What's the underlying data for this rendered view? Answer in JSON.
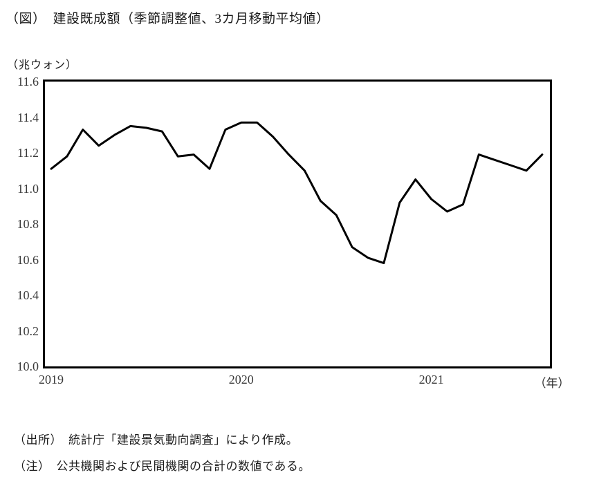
{
  "title": "（図）　建設既成額（季節調整値、3カ月移動平均値）",
  "unit_label": "（兆ウォン）",
  "x_axis_unit": "（年）",
  "source": "（出所）　統計庁「建設景気動向調査」により作成。",
  "note": "（注）　公共機関および民間機関の合計の数値である。",
  "chart_data": {
    "type": "line",
    "title": "建設既成額（季節調整値、3カ月移動平均値）",
    "ylabel": "兆ウォン",
    "ylim": [
      10.0,
      11.6
    ],
    "ytick_interval": 0.2,
    "yticks": [
      "11.6",
      "11.4",
      "11.2",
      "11.0",
      "10.8",
      "10.6",
      "10.4",
      "10.2",
      "10.0"
    ],
    "xticks": [
      "2019",
      "2020",
      "2021"
    ],
    "grid": false,
    "legend": "none",
    "line_color": "#000000",
    "x": [
      "2019-01",
      "2019-02",
      "2019-03",
      "2019-04",
      "2019-05",
      "2019-06",
      "2019-07",
      "2019-08",
      "2019-09",
      "2019-10",
      "2019-11",
      "2019-12",
      "2020-01",
      "2020-02",
      "2020-03",
      "2020-04",
      "2020-05",
      "2020-06",
      "2020-07",
      "2020-08",
      "2020-09",
      "2020-10",
      "2020-11",
      "2020-12",
      "2021-01",
      "2021-02",
      "2021-03",
      "2021-04",
      "2021-05",
      "2021-06",
      "2021-07",
      "2021-08"
    ],
    "values": [
      11.11,
      11.18,
      11.33,
      11.24,
      11.3,
      11.35,
      11.34,
      11.32,
      11.18,
      11.19,
      11.11,
      11.33,
      11.37,
      11.37,
      11.29,
      11.19,
      11.1,
      10.93,
      10.85,
      10.67,
      10.61,
      10.58,
      10.92,
      11.05,
      10.94,
      10.87,
      10.91,
      11.19,
      11.16,
      11.13,
      11.1,
      11.19
    ]
  }
}
